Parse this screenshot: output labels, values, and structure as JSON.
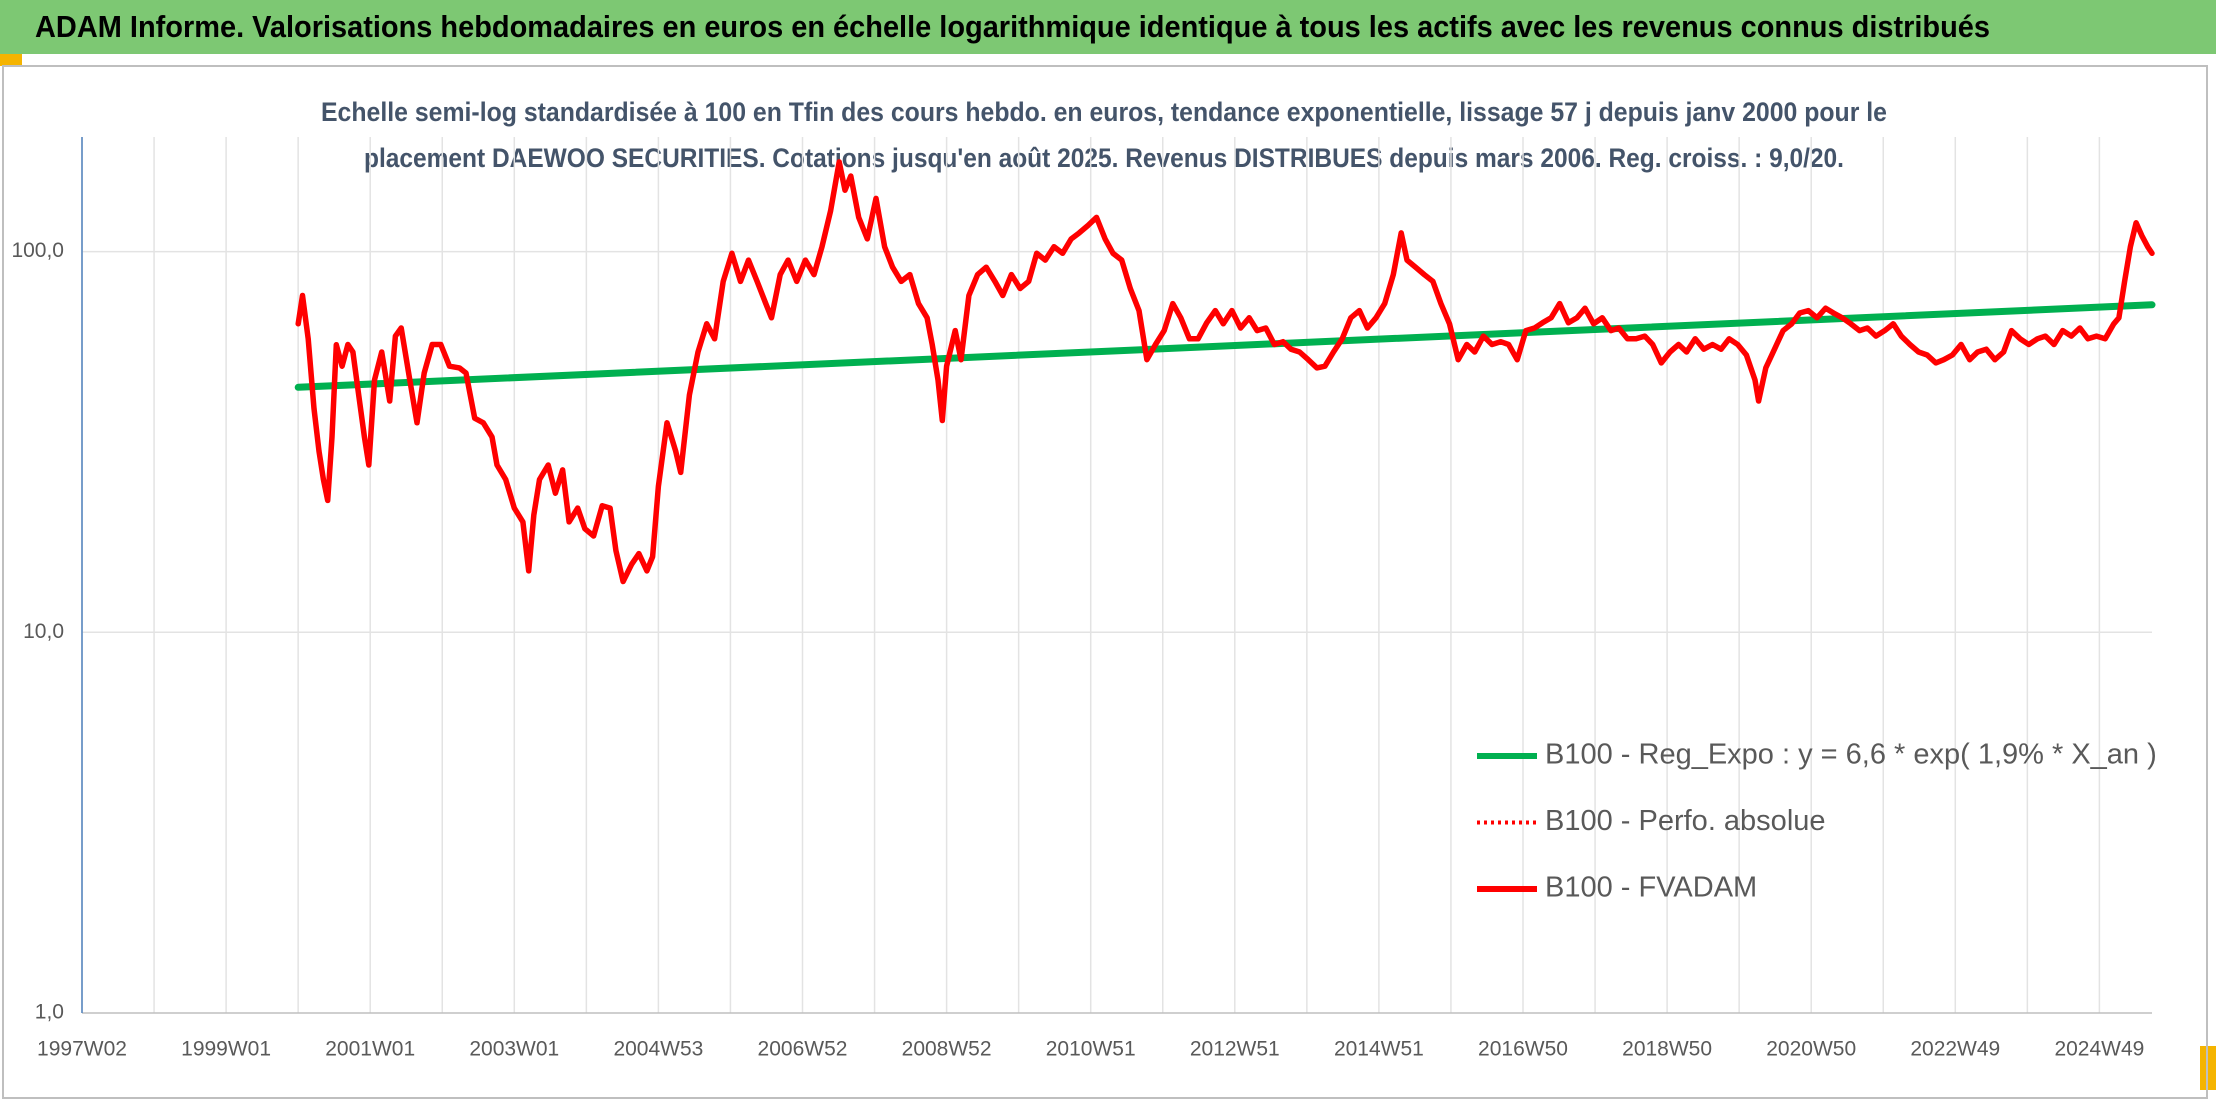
{
  "chart_data": {
    "type": "line",
    "title": "ADAM Informe. Valorisations hebdomadaires en euros en échelle logarithmique identique à tous les actifs avec les revenus connus distribués",
    "subtitle": [
      "Echelle semi-log standardisée à 100 en Tfin des cours hebdo. en euros, tendance exponentielle, lissage 57 j depuis janv 2000 pour le",
      "placement DAEWOO SECURITIES. Cotations jusqu'en août 2025. Revenus DISTRIBUES depuis mars 2006. Reg. croiss. : 9,0/20."
    ],
    "log_scale": true,
    "grid": true,
    "legend": "bottom-right",
    "xlim": [
      1997.0,
      2025.73
    ],
    "xticks": [
      {
        "value": 1997,
        "label": "1997W02"
      },
      {
        "value": 1999,
        "label": "1999W01"
      },
      {
        "value": 2001,
        "label": "2001W01"
      },
      {
        "value": 2003,
        "label": "2003W01"
      },
      {
        "value": 2005,
        "label": "2004W53"
      },
      {
        "value": 2007,
        "label": "2006W52"
      },
      {
        "value": 2009,
        "label": "2008W52"
      },
      {
        "value": 2011,
        "label": "2010W51"
      },
      {
        "value": 2013,
        "label": "2012W51"
      },
      {
        "value": 2015,
        "label": "2014W51"
      },
      {
        "value": 2017,
        "label": "2016W50"
      },
      {
        "value": 2019,
        "label": "2018W50"
      },
      {
        "value": 2021,
        "label": "2020W50"
      },
      {
        "value": 2023,
        "label": "2022W49"
      },
      {
        "value": 2025,
        "label": "2024W49"
      }
    ],
    "x_minor_ticks": [
      1998,
      2000,
      2002,
      2004,
      2006,
      2008,
      2010,
      2012,
      2014,
      2016,
      2018,
      2020,
      2022,
      2024
    ],
    "ylim": [
      1,
      200
    ],
    "yticks": [
      {
        "value": 1,
        "label": "1,0"
      },
      {
        "value": 10,
        "label": "10,0"
      },
      {
        "value": 100,
        "label": "100,0"
      }
    ],
    "series": [
      {
        "name": "B100 - Reg_Expo : y = 6,6 * exp( 1,9% *  X_an )",
        "color": "#00b050",
        "line_style": "solid",
        "x": [
          2000.0,
          2012.85,
          2025.73
        ],
        "values": [
          44,
          56.5,
          72.5
        ]
      },
      {
        "name": "B100 - Perfo. absolue",
        "color": "#ff0000",
        "line_style": "dotted",
        "x": [],
        "values": []
      },
      {
        "name": "B100 - FVADAM",
        "color": "#ff0000",
        "line_style": "solid",
        "x": [
          2000.0,
          2000.06,
          2000.14,
          2000.22,
          2000.29,
          2000.35,
          2000.41,
          2000.47,
          2000.53,
          2000.61,
          2000.69,
          2000.76,
          2000.84,
          2000.92,
          2000.98,
          2001.06,
          2001.16,
          2001.27,
          2001.35,
          2001.43,
          2001.55,
          2001.65,
          2001.75,
          2001.86,
          2001.98,
          2002.1,
          2002.24,
          2002.33,
          2002.45,
          2002.57,
          2002.69,
          2002.76,
          2002.88,
          2003.0,
          2003.12,
          2003.2,
          2003.27,
          2003.35,
          2003.47,
          2003.57,
          2003.67,
          2003.76,
          2003.88,
          2003.98,
          2004.1,
          2004.22,
          2004.33,
          2004.41,
          2004.51,
          2004.63,
          2004.73,
          2004.84,
          2004.92,
          2005.0,
          2005.12,
          2005.24,
          2005.31,
          2005.43,
          2005.55,
          2005.67,
          2005.78,
          2005.9,
          2006.02,
          2006.14,
          2006.25,
          2006.37,
          2006.49,
          2006.57,
          2006.69,
          2006.8,
          2006.92,
          2007.04,
          2007.16,
          2007.27,
          2007.39,
          2007.51,
          2007.59,
          2007.67,
          2007.78,
          2007.9,
          2008.02,
          2008.14,
          2008.25,
          2008.37,
          2008.49,
          2008.61,
          2008.73,
          2008.8,
          2008.88,
          2008.94,
          2009.0,
          2009.12,
          2009.2,
          2009.31,
          2009.43,
          2009.55,
          2009.67,
          2009.78,
          2009.9,
          2010.02,
          2010.14,
          2010.25,
          2010.37,
          2010.49,
          2010.61,
          2010.73,
          2010.84,
          2010.96,
          2011.08,
          2011.2,
          2011.31,
          2011.43,
          2011.55,
          2011.67,
          2011.78,
          2011.9,
          2012.02,
          2012.14,
          2012.25,
          2012.37,
          2012.49,
          2012.61,
          2012.73,
          2012.84,
          2012.96,
          2013.08,
          2013.2,
          2013.31,
          2013.43,
          2013.55,
          2013.67,
          2013.78,
          2013.9,
          2014.02,
          2014.14,
          2014.25,
          2014.37,
          2014.49,
          2014.61,
          2014.73,
          2014.84,
          2014.96,
          2015.08,
          2015.2,
          2015.31,
          2015.39,
          2015.51,
          2015.63,
          2015.75,
          2015.86,
          2015.98,
          2016.1,
          2016.22,
          2016.33,
          2016.45,
          2016.57,
          2016.69,
          2016.8,
          2016.92,
          2017.04,
          2017.16,
          2017.27,
          2017.39,
          2017.51,
          2017.63,
          2017.75,
          2017.86,
          2017.98,
          2018.1,
          2018.22,
          2018.33,
          2018.45,
          2018.57,
          2018.69,
          2018.8,
          2018.92,
          2019.04,
          2019.16,
          2019.27,
          2019.39,
          2019.51,
          2019.63,
          2019.75,
          2019.86,
          2019.98,
          2020.1,
          2020.22,
          2020.27,
          2020.37,
          2020.49,
          2020.61,
          2020.73,
          2020.84,
          2020.96,
          2021.08,
          2021.2,
          2021.31,
          2021.43,
          2021.55,
          2021.67,
          2021.78,
          2021.9,
          2022.02,
          2022.14,
          2022.25,
          2022.37,
          2022.49,
          2022.61,
          2022.73,
          2022.84,
          2022.96,
          2023.08,
          2023.2,
          2023.31,
          2023.43,
          2023.55,
          2023.67,
          2023.78,
          2023.9,
          2024.02,
          2024.14,
          2024.25,
          2024.37,
          2024.49,
          2024.61,
          2024.73,
          2024.84,
          2024.96,
          2025.08,
          2025.2,
          2025.27,
          2025.35,
          2025.43,
          2025.51,
          2025.59,
          2025.67,
          2025.73
        ],
        "values": [
          64.6,
          76.7,
          59,
          38.7,
          29.9,
          25.2,
          22.2,
          32.6,
          56.9,
          50,
          57,
          54.5,
          42,
          32.6,
          27.5,
          46,
          54.5,
          40.5,
          60,
          63,
          46,
          35.5,
          48,
          57,
          57,
          50,
          49.5,
          48,
          36.5,
          35.5,
          32.6,
          27.5,
          25.2,
          21.2,
          19.5,
          14.5,
          20.3,
          25.2,
          27.5,
          23.2,
          26.7,
          19.5,
          21.2,
          18.7,
          17.9,
          21.5,
          21.2,
          16.4,
          13.6,
          15.1,
          16.1,
          14.5,
          15.8,
          24.2,
          35.5,
          29.9,
          26.3,
          42,
          54.5,
          64.6,
          59,
          83.5,
          99,
          83.5,
          95,
          83.5,
          73,
          67,
          87,
          95,
          83.5,
          95,
          87,
          103,
          128,
          172,
          145,
          158,
          123,
          108,
          138,
          103,
          91,
          83.5,
          87,
          73,
          67,
          57,
          46,
          36,
          50,
          62,
          52,
          76.7,
          87,
          91,
          83.5,
          76.7,
          87,
          80,
          83.5,
          99,
          95,
          103,
          99,
          108,
          112,
          117,
          123,
          108,
          99,
          95,
          80,
          70,
          52,
          57,
          62,
          73,
          67,
          59,
          59,
          65,
          70,
          64.6,
          70,
          63,
          67,
          62,
          63,
          57,
          58,
          55.4,
          54.5,
          52,
          49.5,
          50,
          54.5,
          59,
          67,
          70,
          63,
          67,
          73,
          87,
          112,
          95,
          91,
          87,
          83.5,
          73,
          64.6,
          52,
          57,
          54.5,
          60,
          57,
          58,
          57,
          52,
          62,
          63,
          65,
          67,
          73,
          65,
          67,
          71,
          64.6,
          67,
          62,
          63,
          59,
          59,
          60,
          57,
          51,
          54.5,
          57,
          54.5,
          59,
          55.4,
          57,
          55.4,
          59,
          57,
          53.5,
          46,
          40.5,
          49.5,
          55.4,
          62,
          64.6,
          69,
          70,
          67,
          71,
          69,
          67,
          64.6,
          62,
          63,
          60,
          62,
          64.6,
          60,
          57,
          54.5,
          53.5,
          51,
          52,
          53.5,
          57,
          52,
          54.5,
          55.4,
          52,
          54.5,
          62,
          59,
          57,
          59,
          60,
          57,
          62,
          60,
          63,
          59,
          60,
          59,
          64.6,
          67,
          83.5,
          103,
          119,
          110,
          103,
          99
        ]
      }
    ]
  }
}
